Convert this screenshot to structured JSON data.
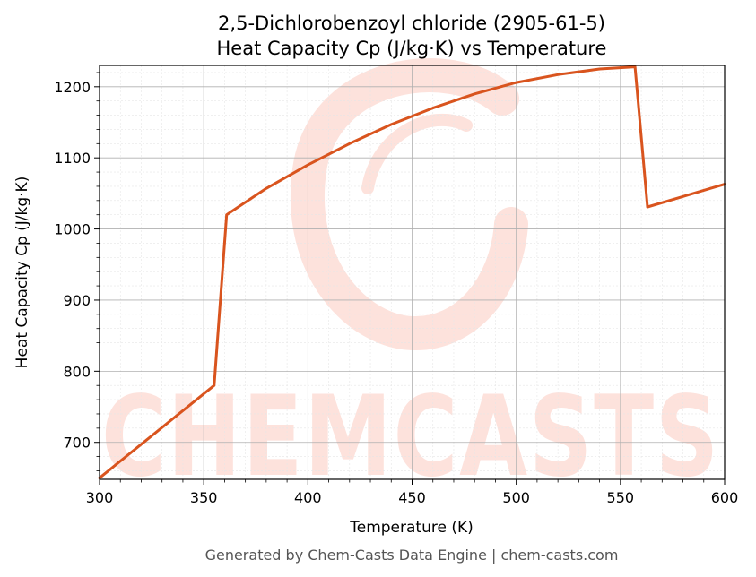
{
  "chart_data": {
    "type": "line",
    "title_line1": "2,5-Dichlorobenzoyl chloride (2905-61-5)",
    "title_line2": "Heat Capacity Cp (J/kg·K) vs Temperature",
    "xlabel": "Temperature (K)",
    "ylabel": "Heat Capacity Cp (J/kg·K)",
    "xlim": [
      300,
      600
    ],
    "ylim": [
      648,
      1230
    ],
    "xticks": [
      300,
      350,
      400,
      450,
      500,
      550,
      600
    ],
    "yticks": [
      700,
      800,
      900,
      1000,
      1100,
      1200
    ],
    "grid": true,
    "series": [
      {
        "color": "#d9541e",
        "x": [
          300,
          355,
          361,
          380,
          400,
          420,
          440,
          460,
          480,
          500,
          520,
          540,
          557,
          563,
          600
        ],
        "y": [
          650,
          780,
          1020,
          1057,
          1090,
          1120,
          1147,
          1170,
          1190,
          1206,
          1217,
          1225,
          1228,
          1031,
          1063
        ]
      }
    ]
  },
  "watermark": {
    "text": "CHEMCASTS",
    "color": "#fde2dc"
  },
  "footer": "Generated by Chem-Casts Data Engine | chem-casts.com"
}
